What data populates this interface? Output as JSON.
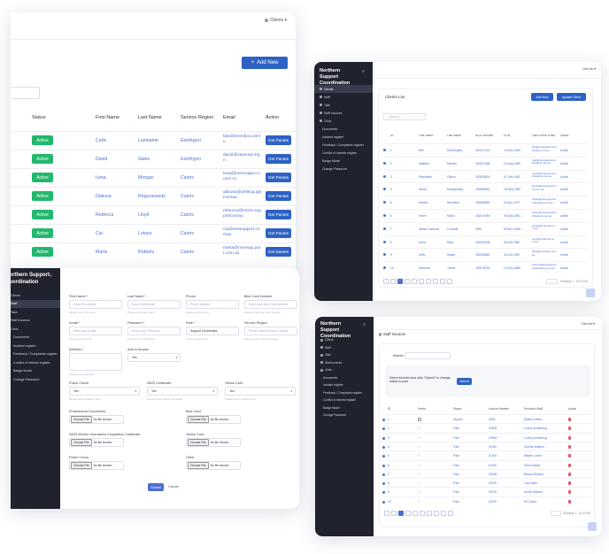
{
  "clients_table": {
    "header_right": "Clients ▾",
    "add_button": "Add New",
    "columns": [
      "Status",
      "First Name",
      "Last Name",
      "Service Region",
      "Email",
      "Action"
    ],
    "rows": [
      {
        "status": "Active",
        "first": "Carle",
        "last": "Lastname",
        "region": "Eenthyjon",
        "email": "fate@nrembco.oirnlu",
        "action": "Get Pantes"
      },
      {
        "status": "Active",
        "first": "David",
        "last": "Sales",
        "region": "Eenthyjon",
        "email": "david@sasvrea.nrgn",
        "action": "Get Pantes"
      },
      {
        "status": "Active",
        "first": "Lena",
        "last": "Morgan",
        "region": "Cairns",
        "email": "lena@nrenvuppo.rcoom.ru",
        "action": "Get Pantes"
      },
      {
        "status": "Active",
        "first": "Dakusa",
        "last": "Reguranseds",
        "region": "Cairns",
        "email": "dakusa@delisup.pprtcomau",
        "action": "Get Pantes"
      },
      {
        "status": "Active",
        "first": "Rebecca",
        "last": "Lloyd",
        "region": "Cairns",
        "email": "rebecca@nrens.supportcomau",
        "action": "Get Pantes"
      },
      {
        "status": "Active",
        "first": "Cai",
        "last": "Lotues",
        "region": "Cairns",
        "email": "cai@erewupport.comau",
        "action": "Get Pantes"
      },
      {
        "status": "Active",
        "first": "Marta",
        "last": "Roberts",
        "region": "Cairns",
        "email": "marta@nrevsup.port.com.au",
        "action": "Get Dantes"
      }
    ]
  },
  "brand": "Northern Support Coordination",
  "client_list": {
    "header_right": "Clients ▾",
    "menu": [
      "Clients",
      "Staff",
      "Task",
      "Staff Invoices",
      "Clinic",
      "Documents",
      "Incident register",
      "Feedback / Complaints register",
      "Conflict of interest register",
      "Badge Model",
      "Change Password"
    ],
    "title": "Clients List",
    "btn_add": "Add New",
    "btn_update": "Update Client",
    "search_placeholder": "Search...",
    "columns": [
      "ID",
      "First Name",
      "Last Name",
      "NDIS Number",
      "DOB",
      "Last Phone Email",
      "Status"
    ],
    "rows": [
      {
        "id": "1",
        "first": "Bell",
        "last": "Schovegley",
        "ndis": "390217114",
        "dob": "10-Nov-1982",
        "email": "bell@nrsupportcoordinating.com.au",
        "status": "Active"
      },
      {
        "id": "2",
        "first": "Matthew",
        "last": "Mardell",
        "ndis": "430321088",
        "dob": "23-Aug-1980",
        "email": "matt@nrsupportcoordinating.com.au",
        "status": "Active"
      },
      {
        "id": "3",
        "first": "Stephanie",
        "last": "Gibson",
        "ndis": "430008816",
        "dob": "01-Feb-1981",
        "email": "steph@nrsupportcoordinating.com.au",
        "status": "Active"
      },
      {
        "id": "4",
        "first": "Jenna",
        "last": "Montgomery",
        "ndis": "430058851",
        "dob": "18-Sep-1990",
        "email": "jenna@nrsupportcoord.com.au",
        "status": "Active"
      },
      {
        "id": "5",
        "first": "Sabina",
        "last": "Reynolds",
        "ndis": "430088882",
        "dob": "03-Apr-1973",
        "email": "sabina@nrsupportcoordinating.com.au",
        "status": "Active"
      },
      {
        "id": "6",
        "first": "Helen",
        "last": "Macln",
        "ndis": "430070080",
        "dob": "09-Sep-1981",
        "email": "helen@nrsupportcoordinating.com.au",
        "status": "Active"
      },
      {
        "id": "7",
        "first": "Jessie Clarence",
        "last": "Contrelli",
        "ndis": "9999",
        "dob": "09-Nov-1986",
        "email": "jessie@example.com.au",
        "status": "Active"
      },
      {
        "id": "8",
        "first": "Anna",
        "last": "Riley",
        "ndis": "430040508",
        "dob": "06-Oct-1980",
        "email": "anna@example.com.au",
        "status": "Active"
      },
      {
        "id": "9",
        "first": "Kelly",
        "last": "Saska",
        "ndis": "430048883",
        "dob": "06-Oct-1990",
        "email": "kelly@example.com.au",
        "status": "Active"
      },
      {
        "id": "10",
        "first": "Rebecca",
        "last": "Tissier",
        "ndis": "430078093",
        "dob": "13-Feb-1985",
        "email": "rebecca@nrsupportcoordinating.com.au",
        "status": "Active"
      }
    ],
    "pages": [
      "1",
      "2",
      "3",
      "4",
      "5",
      "6"
    ],
    "footer_right": "Showing 1 - 10 of 100"
  },
  "staff_form": {
    "menu": [
      "Clients",
      "Staff",
      "Task",
      "Staff Invoices",
      "Clinic",
      "Documents",
      "Incident register",
      "Feedback / Complaints register",
      "Conflict of interest register",
      "Badge Model",
      "Change Password"
    ],
    "fields": [
      {
        "label": "First Name *",
        "placeholder": "Enter First Name",
        "hint": "Please enter first name"
      },
      {
        "label": "Last Name *",
        "placeholder": "Enter Last Name",
        "hint": "Please enter last name"
      },
      {
        "label": "Phone",
        "placeholder": "Phone number",
        "hint": "Please enter phone"
      },
      {
        "label": "Blue Card Number",
        "placeholder": "Enter your Blue Card Number",
        "hint": "Please enter blue card number"
      },
      {
        "label": "Email *",
        "placeholder": "Enter your Email",
        "hint": "Please enter Email"
      },
      {
        "label": "Password *",
        "placeholder": "Enter your Password",
        "hint": "Please enter Password"
      },
      {
        "label": "Role *",
        "placeholder": "Support Coordinator",
        "hint": "Please select Role"
      },
      {
        "label": "Service Region",
        "placeholder": "Please Select Service Region",
        "hint": "Please select Service Region"
      }
    ],
    "address_label": "Address *",
    "address_hint": "Please enter Address",
    "access_label": "Add in Access",
    "access_value": "Yes",
    "checks": [
      {
        "label": "Police Check",
        "value": "Yes",
        "hint": "Please select Police Check"
      },
      {
        "label": "NDIS Certificate",
        "value": "Yes",
        "hint": "Please select NDIS Certificate"
      },
      {
        "label": "Yellow Card",
        "value": "Yes",
        "hint": "Please select Yellow Card"
      }
    ],
    "files": [
      {
        "label": "Professional Documents"
      },
      {
        "label": "Blue Card"
      },
      {
        "label": "NDIS Worker Orientation Completion Certificate"
      },
      {
        "label": "Yellow Card"
      },
      {
        "label": "Police Check"
      },
      {
        "label": "Other"
      }
    ],
    "choose_file": "Choose File",
    "no_file": "No file chosen",
    "submit": "Submit",
    "cancel": "Cancel"
  },
  "staff_invoices": {
    "header_right": "Clients ▾",
    "title": "Staff Invoices",
    "search_label": "Search:",
    "notice": "Select invoices and click \"Submit\" to change status to paid",
    "submit": "Submit",
    "columns": [
      "ID",
      "Select",
      "Status",
      "Invoice Number",
      "Provided Staff",
      "Action"
    ],
    "rows": [
      {
        "id": "1",
        "status": "Unpaid",
        "num": "0004",
        "staff": "Elaine Collins"
      },
      {
        "id": "2",
        "status": "Paid",
        "num": "03306",
        "staff": "Louise Armstrong"
      },
      {
        "id": "3",
        "status": "Paid",
        "num": "03306",
        "staff": "Louise Armstrong"
      },
      {
        "id": "4",
        "status": "Paid",
        "num": "01300",
        "staff": "Sophia Masters"
      },
      {
        "id": "5",
        "status": "Paid",
        "num": "01300",
        "staff": "Miriam Lovett"
      },
      {
        "id": "6",
        "status": "Paid",
        "num": "01300",
        "staff": "Chloe Astley"
      },
      {
        "id": "7",
        "status": "Paid",
        "num": "00006",
        "staff": "Bianca Weston"
      },
      {
        "id": "8",
        "status": "Paid",
        "num": "00700",
        "staff": "Lucy Allen"
      },
      {
        "id": "9",
        "status": "Paid",
        "num": "00700",
        "staff": "Annie Roberts"
      },
      {
        "id": "10",
        "status": "Paid",
        "num": "00702",
        "staff": "Eli Collins"
      }
    ],
    "pages": [
      "1",
      "2",
      "3",
      "4",
      "5",
      "6"
    ],
    "footer_right": "Showing 1 - 10 of 200"
  }
}
